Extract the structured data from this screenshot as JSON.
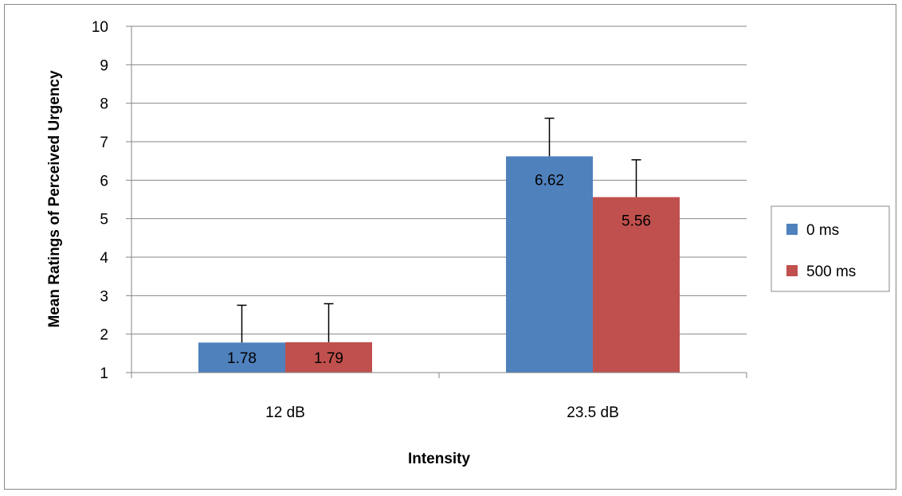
{
  "chart_data": {
    "type": "bar",
    "categories": [
      "12 dB",
      "23.5 dB"
    ],
    "series": [
      {
        "name": "0 ms",
        "values": [
          1.78,
          6.62
        ],
        "errors": [
          0.97,
          0.99
        ],
        "labels": [
          "1.78",
          "6.62"
        ],
        "color": "#4F81BD"
      },
      {
        "name": "500 ms",
        "values": [
          1.79,
          5.56
        ],
        "errors": [
          1.0,
          0.97
        ],
        "labels": [
          "1.79",
          "5.56"
        ],
        "color": "#C0504D"
      }
    ],
    "xlabel": "Intensity",
    "ylabel": "Mean Ratings of Perceived Urgency",
    "ylim": [
      1,
      10
    ],
    "yticks": [
      "1",
      "2",
      "3",
      "4",
      "5",
      "6",
      "7",
      "8",
      "9",
      "10"
    ],
    "grid": true,
    "legend": "right"
  }
}
